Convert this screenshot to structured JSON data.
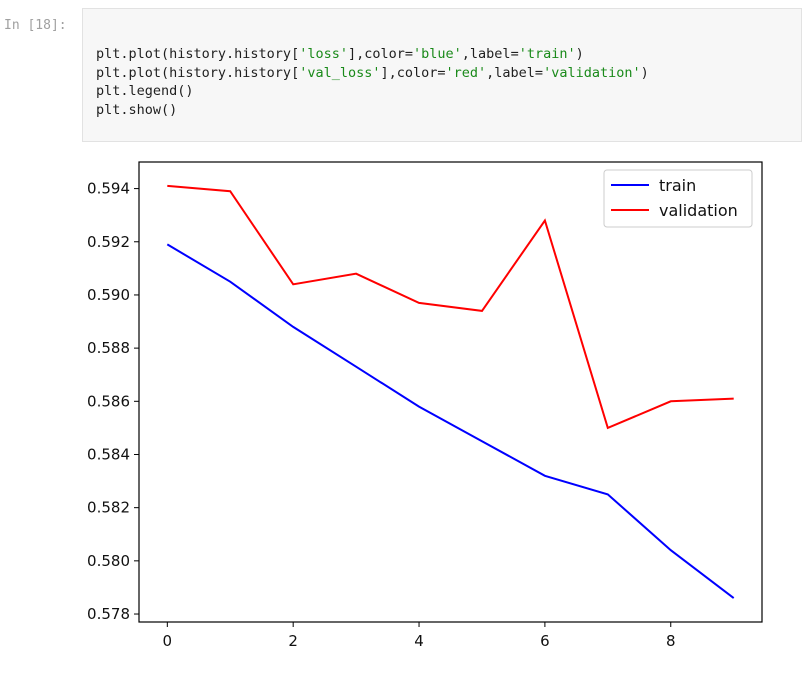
{
  "cell": {
    "prompt": "In [18]:",
    "code_lines": [
      [
        {
          "t": "plt.plot(history.history[",
          "c": "p"
        },
        {
          "t": "'loss'",
          "c": "s"
        },
        {
          "t": "],color=",
          "c": "p"
        },
        {
          "t": "'blue'",
          "c": "s"
        },
        {
          "t": ",label=",
          "c": "p"
        },
        {
          "t": "'train'",
          "c": "s"
        },
        {
          "t": ")",
          "c": "p"
        }
      ],
      [
        {
          "t": "plt.plot(history.history[",
          "c": "p"
        },
        {
          "t": "'val_loss'",
          "c": "s"
        },
        {
          "t": "],color=",
          "c": "p"
        },
        {
          "t": "'red'",
          "c": "s"
        },
        {
          "t": ",label=",
          "c": "p"
        },
        {
          "t": "'validation'",
          "c": "s"
        },
        {
          "t": ")",
          "c": "p"
        }
      ],
      [
        {
          "t": "plt.legend()",
          "c": "p"
        }
      ],
      [
        {
          "t": "plt.show()",
          "c": "p"
        }
      ]
    ]
  },
  "chart_data": {
    "type": "line",
    "x": [
      0,
      1,
      2,
      3,
      4,
      5,
      6,
      7,
      8,
      9
    ],
    "series": [
      {
        "name": "train",
        "color": "#0000ff",
        "values": [
          0.5919,
          0.5905,
          0.5888,
          0.5873,
          0.5858,
          0.5845,
          0.5832,
          0.5825,
          0.5804,
          0.5786
        ]
      },
      {
        "name": "validation",
        "color": "#ff0000",
        "values": [
          0.5941,
          0.5939,
          0.5904,
          0.5908,
          0.5897,
          0.5894,
          0.5928,
          0.585,
          0.586,
          0.5861
        ]
      }
    ],
    "xticks": [
      0,
      2,
      4,
      6,
      8
    ],
    "yticks": [
      0.578,
      0.58,
      0.582,
      0.584,
      0.586,
      0.588,
      0.59,
      0.592,
      0.594
    ],
    "xtick_labels": [
      "0",
      "2",
      "4",
      "6",
      "8"
    ],
    "ytick_labels": [
      "0.578",
      "0.580",
      "0.582",
      "0.584",
      "0.586",
      "0.588",
      "0.590",
      "0.592",
      "0.594"
    ],
    "xlim": [
      -0.45,
      9.45
    ],
    "ylim": [
      0.5777,
      0.595
    ],
    "grid": false,
    "legend": "top-right"
  }
}
